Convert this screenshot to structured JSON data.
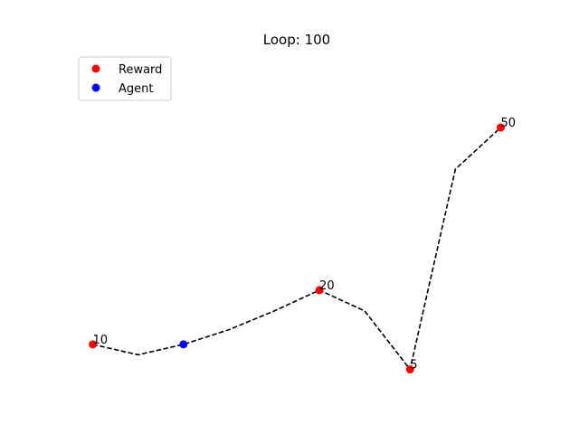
{
  "chart_data": {
    "type": "line",
    "title": "Loop: 100",
    "xlabel": "",
    "ylabel": "",
    "axes_visible": false,
    "grid": false,
    "xlim": [
      -0.45,
      9.45
    ],
    "ylim": [
      -1.0,
      7.0
    ],
    "path": {
      "style": "dashed",
      "color": "#000000",
      "x": [
        0,
        1,
        2,
        3,
        4,
        5,
        6,
        7,
        8,
        9
      ],
      "y": [
        0.0,
        -0.25,
        0.0,
        0.35,
        0.8,
        1.3,
        0.8,
        -0.6,
        4.2,
        5.2
      ]
    },
    "series": [
      {
        "name": "Reward",
        "color": "#ff0000",
        "points": [
          {
            "x": 0,
            "y": 0.0,
            "label": "10"
          },
          {
            "x": 5,
            "y": 1.3,
            "label": "20"
          },
          {
            "x": 7,
            "y": -0.6,
            "label": "5"
          },
          {
            "x": 9,
            "y": 5.2,
            "label": "50"
          }
        ]
      },
      {
        "name": "Agent",
        "color": "#0000ff",
        "points": [
          {
            "x": 2,
            "y": 0.0
          }
        ]
      }
    ],
    "legend": {
      "placement": "top-left",
      "entries": [
        "Reward",
        "Agent"
      ]
    }
  }
}
